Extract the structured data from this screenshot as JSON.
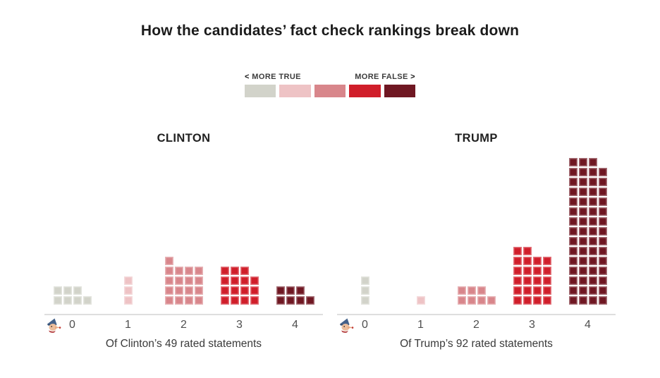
{
  "title": "How the candidates’ fact check rankings break down",
  "legend": {
    "left_arrow": "<",
    "right_arrow": ">",
    "more_true": "MORE TRUE",
    "more_false": "MORE FALSE"
  },
  "chart_data": {
    "type": "bar",
    "style": "waffle-histogram",
    "title": "How the candidates’ fact check rankings break down",
    "categories": [
      "0",
      "1",
      "2",
      "3",
      "4"
    ],
    "colors": [
      "#d2d3ca",
      "#eec3c5",
      "#d8868b",
      "#d01e2a",
      "#6f1722"
    ],
    "color_scale_labels": {
      "left": "MORE TRUE",
      "right": "MORE FALSE"
    },
    "legend_position": "top-center",
    "axis_icon": "pinocchio-icon",
    "squares_per_full_row": 4,
    "series": [
      {
        "name": "CLINTON",
        "values": [
          7,
          3,
          17,
          15,
          7
        ],
        "total": 49,
        "caption": "Of Clinton’s 49 rated statements"
      },
      {
        "name": "TRUMP",
        "values": [
          3,
          1,
          7,
          22,
          59
        ],
        "total": 92,
        "caption": "Of Trump’s 92 rated statements"
      }
    ]
  }
}
